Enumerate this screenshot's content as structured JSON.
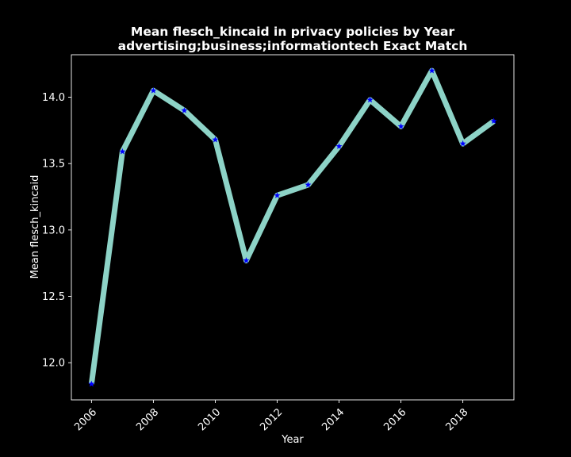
{
  "chart_data": {
    "type": "line",
    "title_lines": [
      "Mean flesch_kincaid in privacy policies by Year",
      "advertising;business;informationtech Exact Match"
    ],
    "xlabel": "Year",
    "ylabel": "Mean flesch_kincaid",
    "x": [
      2006,
      2007,
      2008,
      2009,
      2010,
      2011,
      2012,
      2013,
      2014,
      2015,
      2016,
      2017,
      2018,
      2019
    ],
    "series": [
      {
        "values": [
          11.84,
          13.59,
          14.05,
          13.9,
          13.68,
          12.77,
          13.26,
          13.34,
          13.63,
          13.98,
          13.78,
          14.2,
          13.65,
          13.82
        ],
        "line_color": "#8dd3c7",
        "marker_color": "#0000ff",
        "marker": "star"
      }
    ],
    "xlim": [
      2005.35,
      2019.65
    ],
    "ylim": [
      11.72,
      14.32
    ],
    "xticks": [
      "2006",
      "2008",
      "2010",
      "2012",
      "2014",
      "2016",
      "2018"
    ],
    "yticks": [
      "12.0",
      "12.5",
      "13.0",
      "13.5",
      "14.0"
    ],
    "grid": false,
    "legend": "none",
    "background": "#000000",
    "foreground": "#ffffff"
  }
}
